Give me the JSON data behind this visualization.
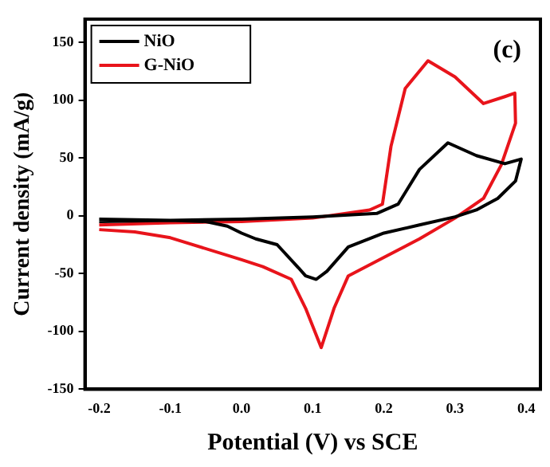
{
  "chart_data": {
    "type": "line",
    "xlabel": "Potential (V) vs SCE",
    "ylabel": "Current density (mA/g)",
    "annotations": [
      "(c)"
    ],
    "xlim": [
      -0.22,
      0.42
    ],
    "xticks": [
      -0.2,
      -0.1,
      {
        "value": 0,
        "label": "0.0"
      },
      0.1,
      0.2,
      0.3,
      0.4
    ],
    "ylim": [
      -150,
      170
    ],
    "yticks": [
      -150,
      -100,
      -50,
      0,
      50,
      100,
      150
    ],
    "grid": false,
    "legend": "top left",
    "marker": "none",
    "line_style": "solid",
    "series": [
      {
        "name": "NiO",
        "color": "#000000",
        "x": [
          -0.2,
          -0.1,
          0,
          0.1,
          0.19,
          0.22,
          0.25,
          0.29,
          0.33,
          0.37,
          0.393,
          0.385,
          0.36,
          0.33,
          0.3,
          0.25,
          0.2,
          0.15,
          0.12,
          0.105,
          0.09,
          0.08,
          0.05,
          0.02,
          0,
          -0.02,
          -0.05,
          -0.1,
          -0.2
        ],
        "values": [
          -5,
          -4,
          -3,
          -1,
          2,
          10,
          40,
          63,
          52,
          45,
          49,
          30,
          15,
          5,
          -1,
          -8,
          -15,
          -27,
          -48,
          -55,
          -52,
          -45,
          -25,
          -20,
          -15,
          -9,
          -5,
          -4,
          -3
        ]
      },
      {
        "name": "G-NiO",
        "color": "#e8141b",
        "x": [
          -0.2,
          -0.1,
          0,
          0.1,
          0.18,
          0.198,
          0.21,
          0.23,
          0.262,
          0.3,
          0.34,
          0.37,
          0.384,
          0.385,
          0.365,
          0.34,
          0.3,
          0.25,
          0.2,
          0.15,
          0.13,
          0.112,
          0.09,
          0.07,
          0.03,
          0,
          -0.1,
          -0.15,
          -0.2
        ],
        "values": [
          -8,
          -6,
          -5,
          -2,
          5,
          10,
          60,
          110,
          134,
          120,
          97,
          103,
          106,
          80,
          44,
          15,
          -2,
          -20,
          -36,
          -52,
          -80,
          -114,
          -80,
          -55,
          -44,
          -38,
          -19,
          -14,
          -12
        ]
      }
    ]
  }
}
